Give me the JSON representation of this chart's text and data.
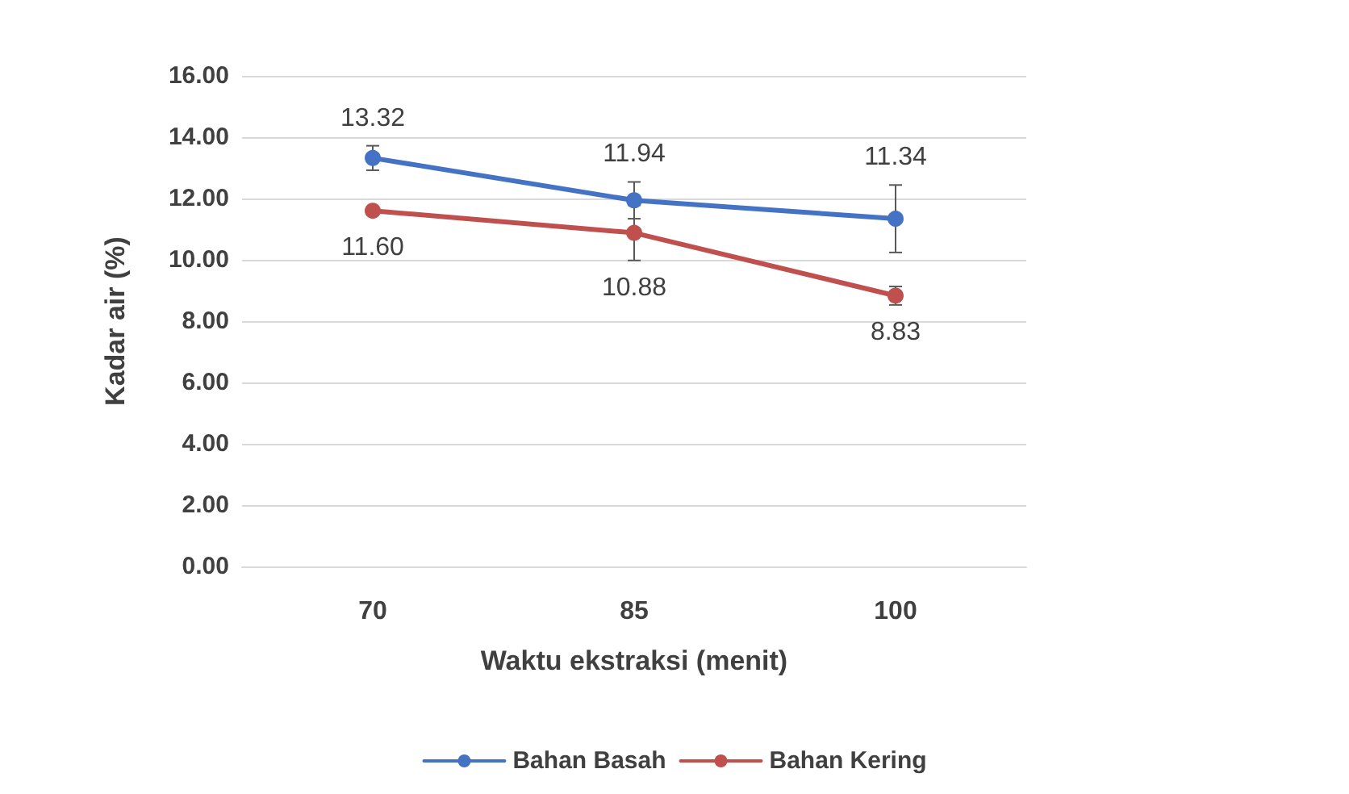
{
  "chart_data": {
    "type": "line",
    "xlabel": "Waktu ekstraksi (menit)",
    "ylabel": "Kadar air (%)",
    "categories": [
      "70",
      "85",
      "100"
    ],
    "series": [
      {
        "name": "Bahan Basah",
        "color": "#4472c4",
        "values": [
          13.32,
          11.94,
          11.34
        ],
        "errors": [
          0.4,
          0.6,
          1.1
        ],
        "value_labels": [
          "13.32",
          "11.94",
          "11.34"
        ]
      },
      {
        "name": "Bahan Kering",
        "color": "#c0504d",
        "values": [
          11.6,
          10.88,
          8.83
        ],
        "errors": [
          null,
          0.9,
          0.3
        ],
        "value_labels": [
          "11.60",
          "10.88",
          "8.83"
        ]
      }
    ],
    "ylim": [
      0,
      16
    ],
    "yticks": [
      {
        "value": 0,
        "label": "0.00"
      },
      {
        "value": 2,
        "label": "2.00"
      },
      {
        "value": 4,
        "label": "4.00"
      },
      {
        "value": 6,
        "label": "6.00"
      },
      {
        "value": 8,
        "label": "8.00"
      },
      {
        "value": 10,
        "label": "10.00"
      },
      {
        "value": 12,
        "label": "12.00"
      },
      {
        "value": 14,
        "label": "14.00"
      },
      {
        "value": 16,
        "label": "16.00"
      }
    ],
    "grid": "y",
    "legend": "bottom",
    "marker": "circle",
    "line_style": "solid"
  }
}
